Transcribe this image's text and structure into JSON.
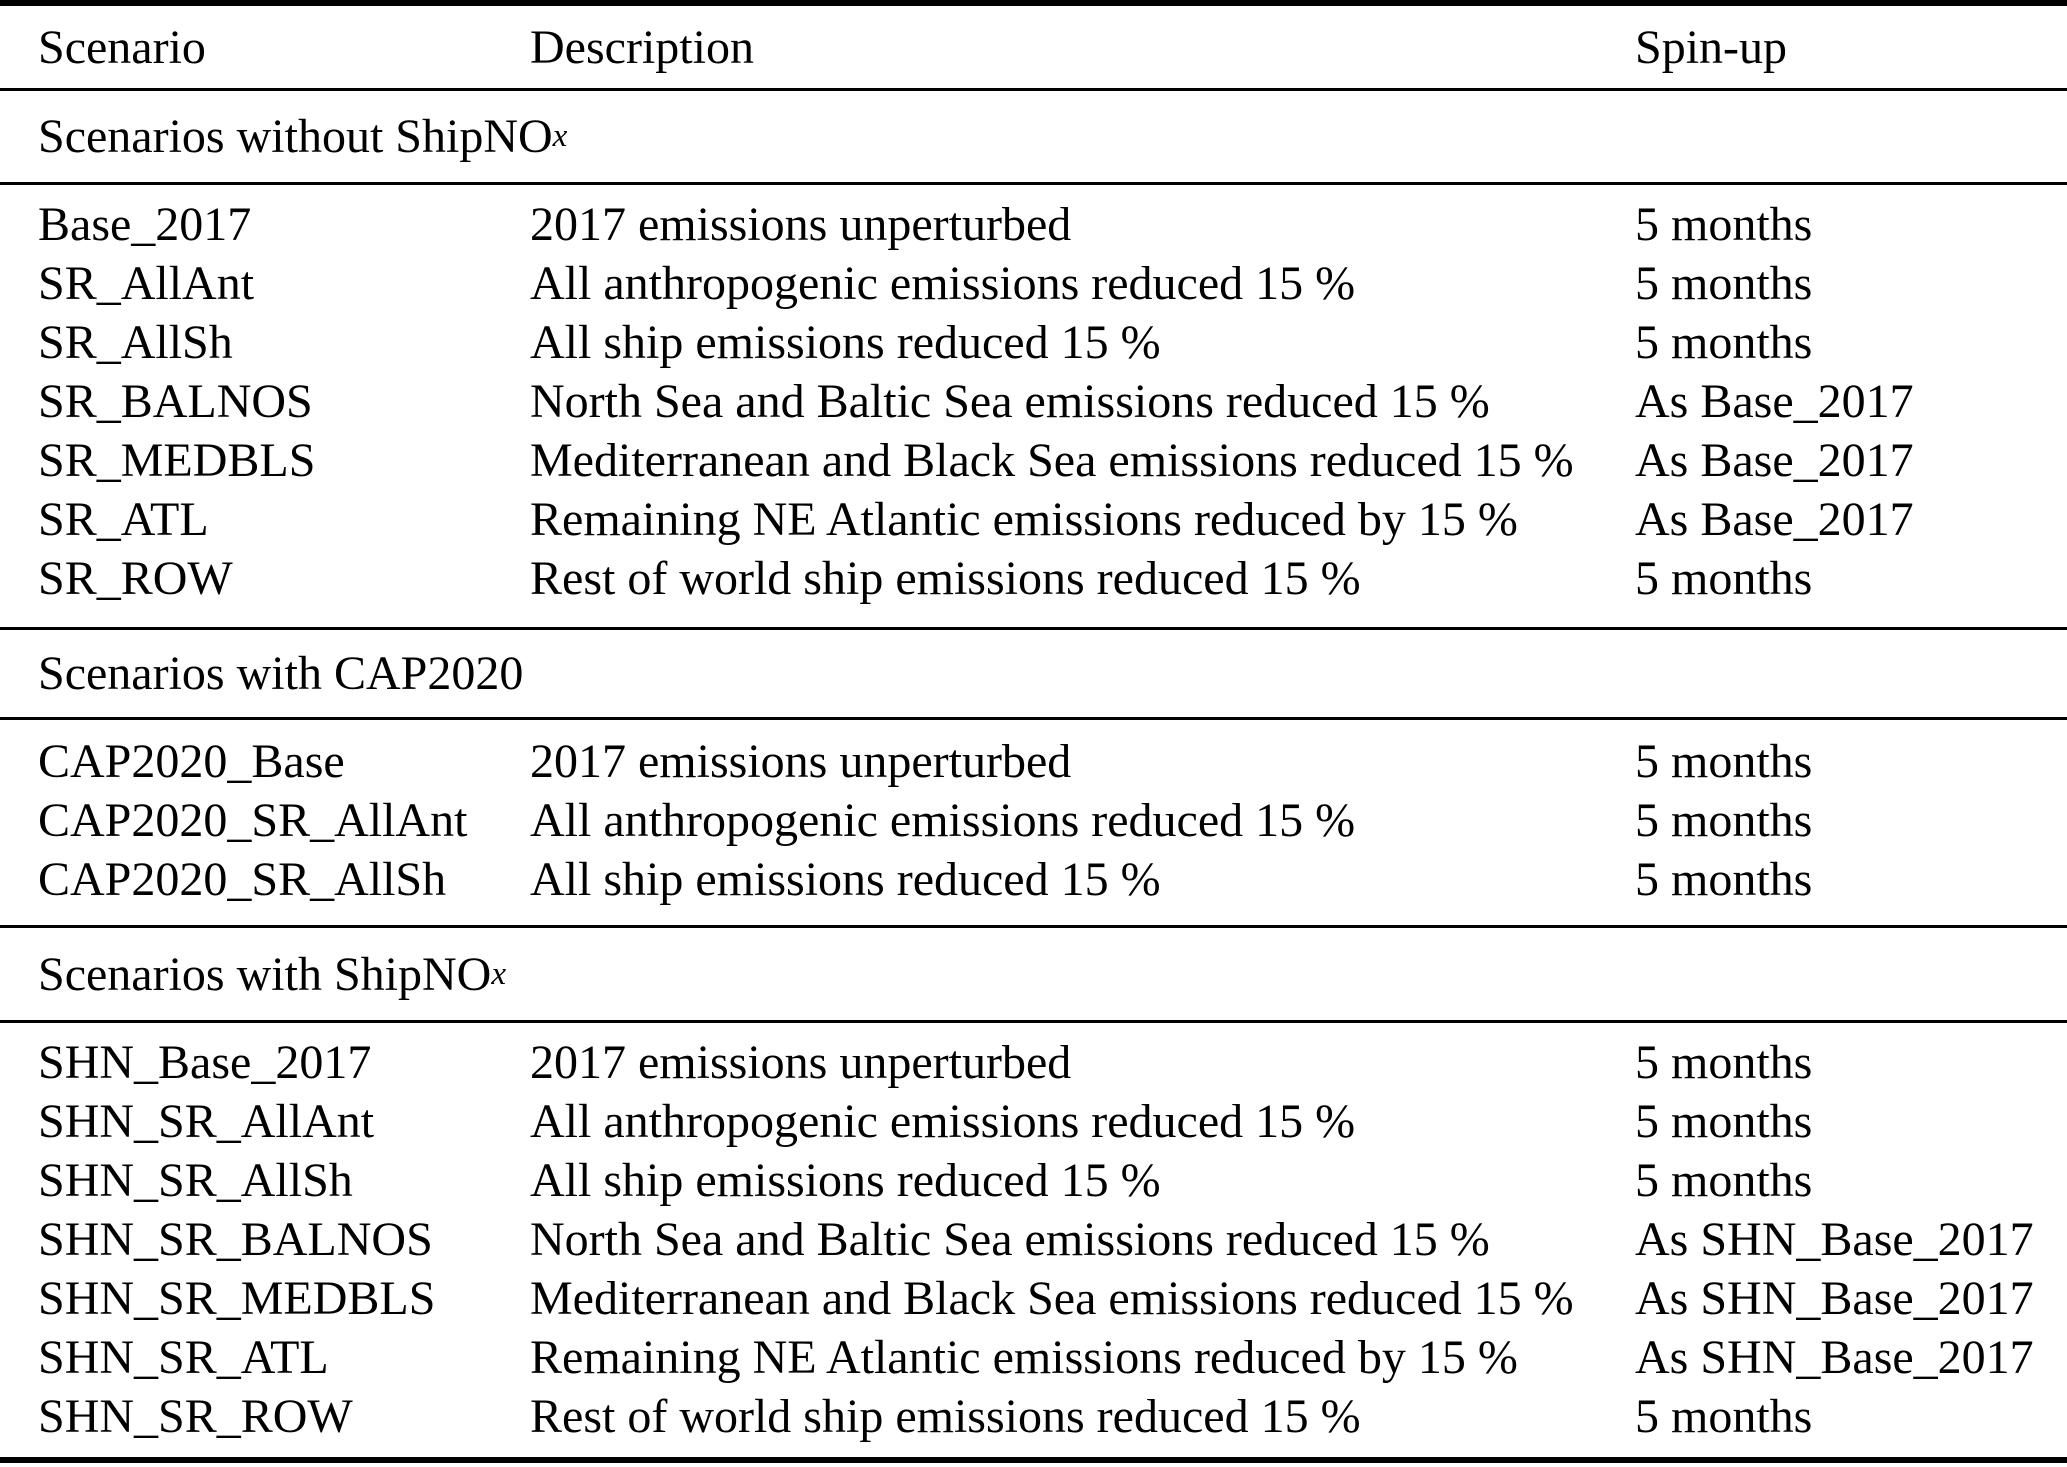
{
  "table": {
    "colors": {
      "text": "#000000",
      "rule": "#000000",
      "background": "#ffffff"
    },
    "columns": {
      "scenario": "Scenario",
      "description": "Description",
      "spinup": "Spin-up"
    },
    "sections": [
      {
        "title_prefix": "Scenarios without ShipNO",
        "title_sub": "x",
        "rows": [
          {
            "scenario": "Base_2017",
            "description": "2017 emissions unperturbed",
            "spinup": "5 months"
          },
          {
            "scenario": "SR_AllAnt",
            "description": "All anthropogenic emissions reduced 15 %",
            "spinup": "5 months"
          },
          {
            "scenario": "SR_AllSh",
            "description": "All ship emissions reduced 15 %",
            "spinup": "5 months"
          },
          {
            "scenario": "SR_BALNOS",
            "description": "North Sea and Baltic Sea emissions reduced 15 %",
            "spinup": "As Base_2017"
          },
          {
            "scenario": "SR_MEDBLS",
            "description": "Mediterranean and Black Sea emissions reduced 15 %",
            "spinup": "As Base_2017"
          },
          {
            "scenario": "SR_ATL",
            "description": "Remaining NE Atlantic emissions reduced by 15 %",
            "spinup": "As Base_2017"
          },
          {
            "scenario": "SR_ROW",
            "description": "Rest of world ship emissions reduced 15 %",
            "spinup": "5 months"
          }
        ]
      },
      {
        "title_prefix": "Scenarios with CAP2020",
        "title_sub": "",
        "rows": [
          {
            "scenario": "CAP2020_Base",
            "description": "2017 emissions unperturbed",
            "spinup": "5 months"
          },
          {
            "scenario": "CAP2020_SR_AllAnt",
            "description": "All anthropogenic emissions reduced 15 %",
            "spinup": "5 months"
          },
          {
            "scenario": "CAP2020_SR_AllSh",
            "description": "All ship emissions reduced 15 %",
            "spinup": "5 months"
          }
        ]
      },
      {
        "title_prefix": "Scenarios with ShipNO",
        "title_sub": "x",
        "rows": [
          {
            "scenario": "SHN_Base_2017",
            "description": "2017 emissions unperturbed",
            "spinup": "5 months"
          },
          {
            "scenario": "SHN_SR_AllAnt",
            "description": "All anthropogenic emissions reduced 15 %",
            "spinup": "5 months"
          },
          {
            "scenario": "SHN_SR_AllSh",
            "description": "All ship emissions reduced 15 %",
            "spinup": "5 months"
          },
          {
            "scenario": "SHN_SR_BALNOS",
            "description": "North Sea and Baltic Sea emissions reduced 15 %",
            "spinup": "As SHN_Base_2017"
          },
          {
            "scenario": "SHN_SR_MEDBLS",
            "description": "Mediterranean and Black Sea emissions reduced 15 %",
            "spinup": "As SHN_Base_2017"
          },
          {
            "scenario": "SHN_SR_ATL",
            "description": "Remaining NE Atlantic emissions reduced by 15 %",
            "spinup": "As SHN_Base_2017"
          },
          {
            "scenario": "SHN_SR_ROW",
            "description": "Rest of world ship emissions reduced 15 %",
            "spinup": "5 months"
          }
        ]
      }
    ]
  }
}
